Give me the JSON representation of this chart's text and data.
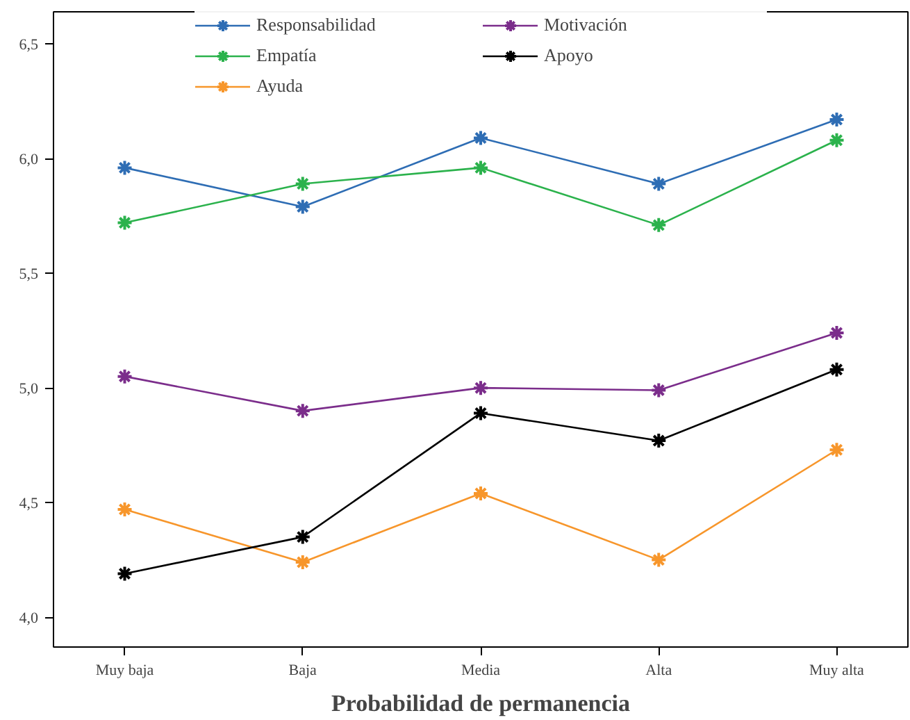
{
  "chart_data": {
    "type": "line",
    "xlabel": "Probabilidad de permanencia",
    "categories": [
      "Muy baja",
      "Baja",
      "Media",
      "Alta",
      "Muy alta"
    ],
    "series": [
      {
        "name": "Responsabilidad",
        "color": "#2e6db4",
        "values": [
          5.96,
          5.79,
          6.09,
          5.89,
          6.17
        ]
      },
      {
        "name": "Empatía",
        "color": "#2bb24c",
        "values": [
          5.72,
          5.89,
          5.96,
          5.71,
          6.08
        ]
      },
      {
        "name": "Ayuda",
        "color": "#f7962b",
        "values": [
          4.47,
          4.24,
          4.54,
          4.25,
          4.73
        ]
      },
      {
        "name": "Motivación",
        "color": "#7b2d8b",
        "values": [
          5.05,
          4.9,
          5.0,
          4.99,
          5.24
        ]
      },
      {
        "name": "Apoyo",
        "color": "#000000",
        "values": [
          4.19,
          4.35,
          4.89,
          4.77,
          5.08
        ]
      }
    ],
    "ylim": [
      3.87,
      6.64
    ],
    "yticks": [
      {
        "value": 4.0,
        "label": "4,0"
      },
      {
        "value": 4.5,
        "label": "4,5"
      },
      {
        "value": 5.0,
        "label": "5,0"
      },
      {
        "value": 5.5,
        "label": "5,5"
      },
      {
        "value": 6.0,
        "label": "6,0"
      },
      {
        "value": 6.5,
        "label": "6,5"
      }
    ],
    "grid": false,
    "legend": "top",
    "marker": "cross",
    "line_style": "solid"
  }
}
